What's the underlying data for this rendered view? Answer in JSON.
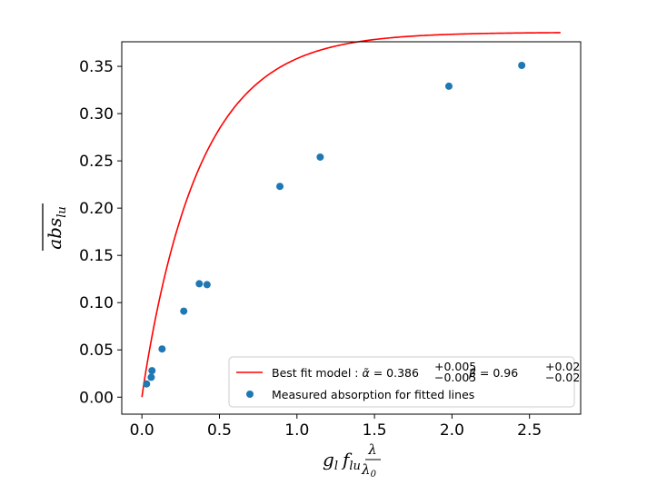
{
  "chart_data": {
    "type": "scatter",
    "title": "",
    "xlabel": {
      "main": "g",
      "main_sub": "l",
      "second": "f",
      "second_sub": "lu",
      "frac_num": "λ",
      "frac_den": "λ",
      "frac_den_sub": "0"
    },
    "ylabel": {
      "main": "abs",
      "sub": "lu"
    },
    "xlim": [
      -0.13,
      2.83
    ],
    "ylim": [
      -0.018,
      0.376
    ],
    "xticks": [
      0.0,
      0.5,
      1.0,
      1.5,
      2.0,
      2.5
    ],
    "xtick_labels": [
      "0.0",
      "0.5",
      "1.0",
      "1.5",
      "2.0",
      "2.5"
    ],
    "yticks": [
      0.0,
      0.05,
      0.1,
      0.15,
      0.2,
      0.25,
      0.3,
      0.35
    ],
    "ytick_labels": [
      "0.00",
      "0.05",
      "0.10",
      "0.15",
      "0.20",
      "0.25",
      "0.30",
      "0.35"
    ],
    "grid": false,
    "legend_position": "lower-right",
    "series": [
      {
        "name": "Measured absorption for fitted lines",
        "kind": "scatter",
        "color": "#1f77b4",
        "points": [
          {
            "x": 0.03,
            "y": 0.014
          },
          {
            "x": 0.06,
            "y": 0.021
          },
          {
            "x": 0.065,
            "y": 0.028
          },
          {
            "x": 0.13,
            "y": 0.051
          },
          {
            "x": 0.27,
            "y": 0.091
          },
          {
            "x": 0.37,
            "y": 0.12
          },
          {
            "x": 0.42,
            "y": 0.119
          },
          {
            "x": 0.89,
            "y": 0.223
          },
          {
            "x": 1.15,
            "y": 0.254
          },
          {
            "x": 1.98,
            "y": 0.329
          },
          {
            "x": 2.45,
            "y": 0.351
          }
        ]
      },
      {
        "name": "Best fit model",
        "kind": "line",
        "color": "#ff0000",
        "model": {
          "alpha": 0.386,
          "beta": 0.96,
          "x_start": 0.0,
          "x_end": 2.7
        }
      }
    ],
    "legend": [
      {
        "series": "Best fit model",
        "prefix": "Best fit model : ",
        "alpha_sym": "α̃",
        "alpha_val": " = 0.386",
        "alpha_sup": "+0.005",
        "alpha_sub": "−0.005",
        "sep": ",   ",
        "beta_sym": "β",
        "beta_val": " = 0.96",
        "beta_sup": "+0.02",
        "beta_sub": "−0.02"
      },
      {
        "series": "Measured absorption for fitted lines",
        "label": "Measured absorption for fitted lines"
      }
    ]
  }
}
